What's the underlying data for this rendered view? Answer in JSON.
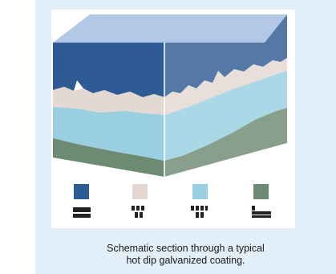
{
  "colors": {
    "panel_background": "#e2eef8",
    "steel": "#6d8a72",
    "gamma_layer": "#99cfe0",
    "delta_layer": "#e3d8d2",
    "zeta_layer": "#2f5b94",
    "top_surface": "#b2c8e6"
  },
  "legend": [
    {
      "swatch_color": "#2f5b94",
      "label_glyph": "pure zinc"
    },
    {
      "swatch_color": "#e3d8d2",
      "label_glyph": "94% Zn 6% Fe"
    },
    {
      "swatch_color": "#99cfe0",
      "label_glyph": "90% Zn 10% Fe"
    },
    {
      "swatch_color": "#6d8a72",
      "label_glyph": "base steel"
    }
  ],
  "caption": {
    "line1": "Schematic section through a typical",
    "line2": "hot dip galvanized coating."
  }
}
